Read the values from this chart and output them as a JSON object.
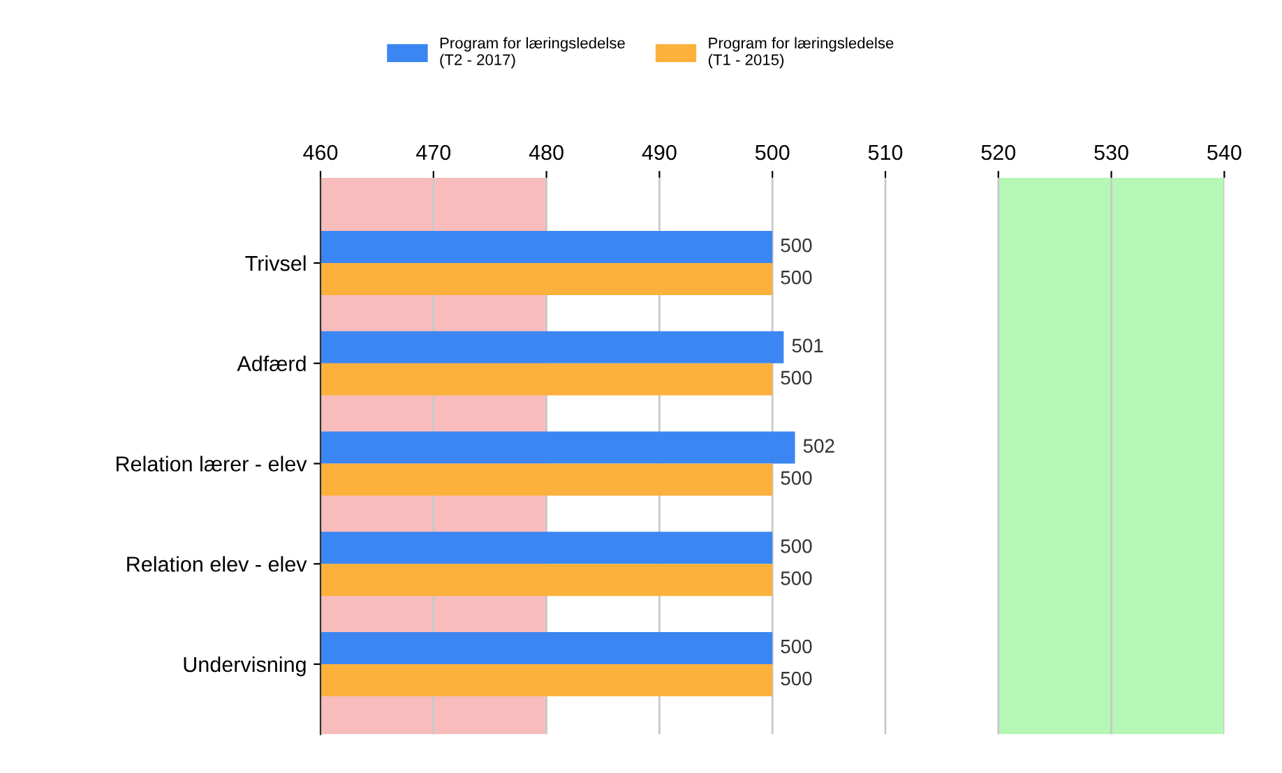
{
  "chart_data": {
    "type": "bar",
    "orientation": "horizontal",
    "categories": [
      "Trivsel",
      "Adfærd",
      "Relation lærer - elev",
      "Relation elev - elev",
      "Undervisning"
    ],
    "series": [
      {
        "name": "Program for læringsledelse\n(T2 - 2017)",
        "color": "#3b86f2",
        "values": [
          500,
          501,
          502,
          500,
          500
        ]
      },
      {
        "name": "Program for læringsledelse\n(T1 - 2015)",
        "color": "#fbb13c",
        "values": [
          500,
          500,
          500,
          500,
          500
        ]
      }
    ],
    "xlim": [
      460,
      540
    ],
    "xticks": [
      460,
      470,
      480,
      490,
      500,
      510,
      520,
      530,
      540
    ],
    "bands": [
      {
        "axis": "x",
        "from": 460,
        "to": 480,
        "color": "#f8bcbc"
      },
      {
        "axis": "x",
        "from": 520,
        "to": 540,
        "color": "#b5f7b5"
      }
    ],
    "data_labels": true,
    "grid": "x",
    "legend": "top"
  }
}
